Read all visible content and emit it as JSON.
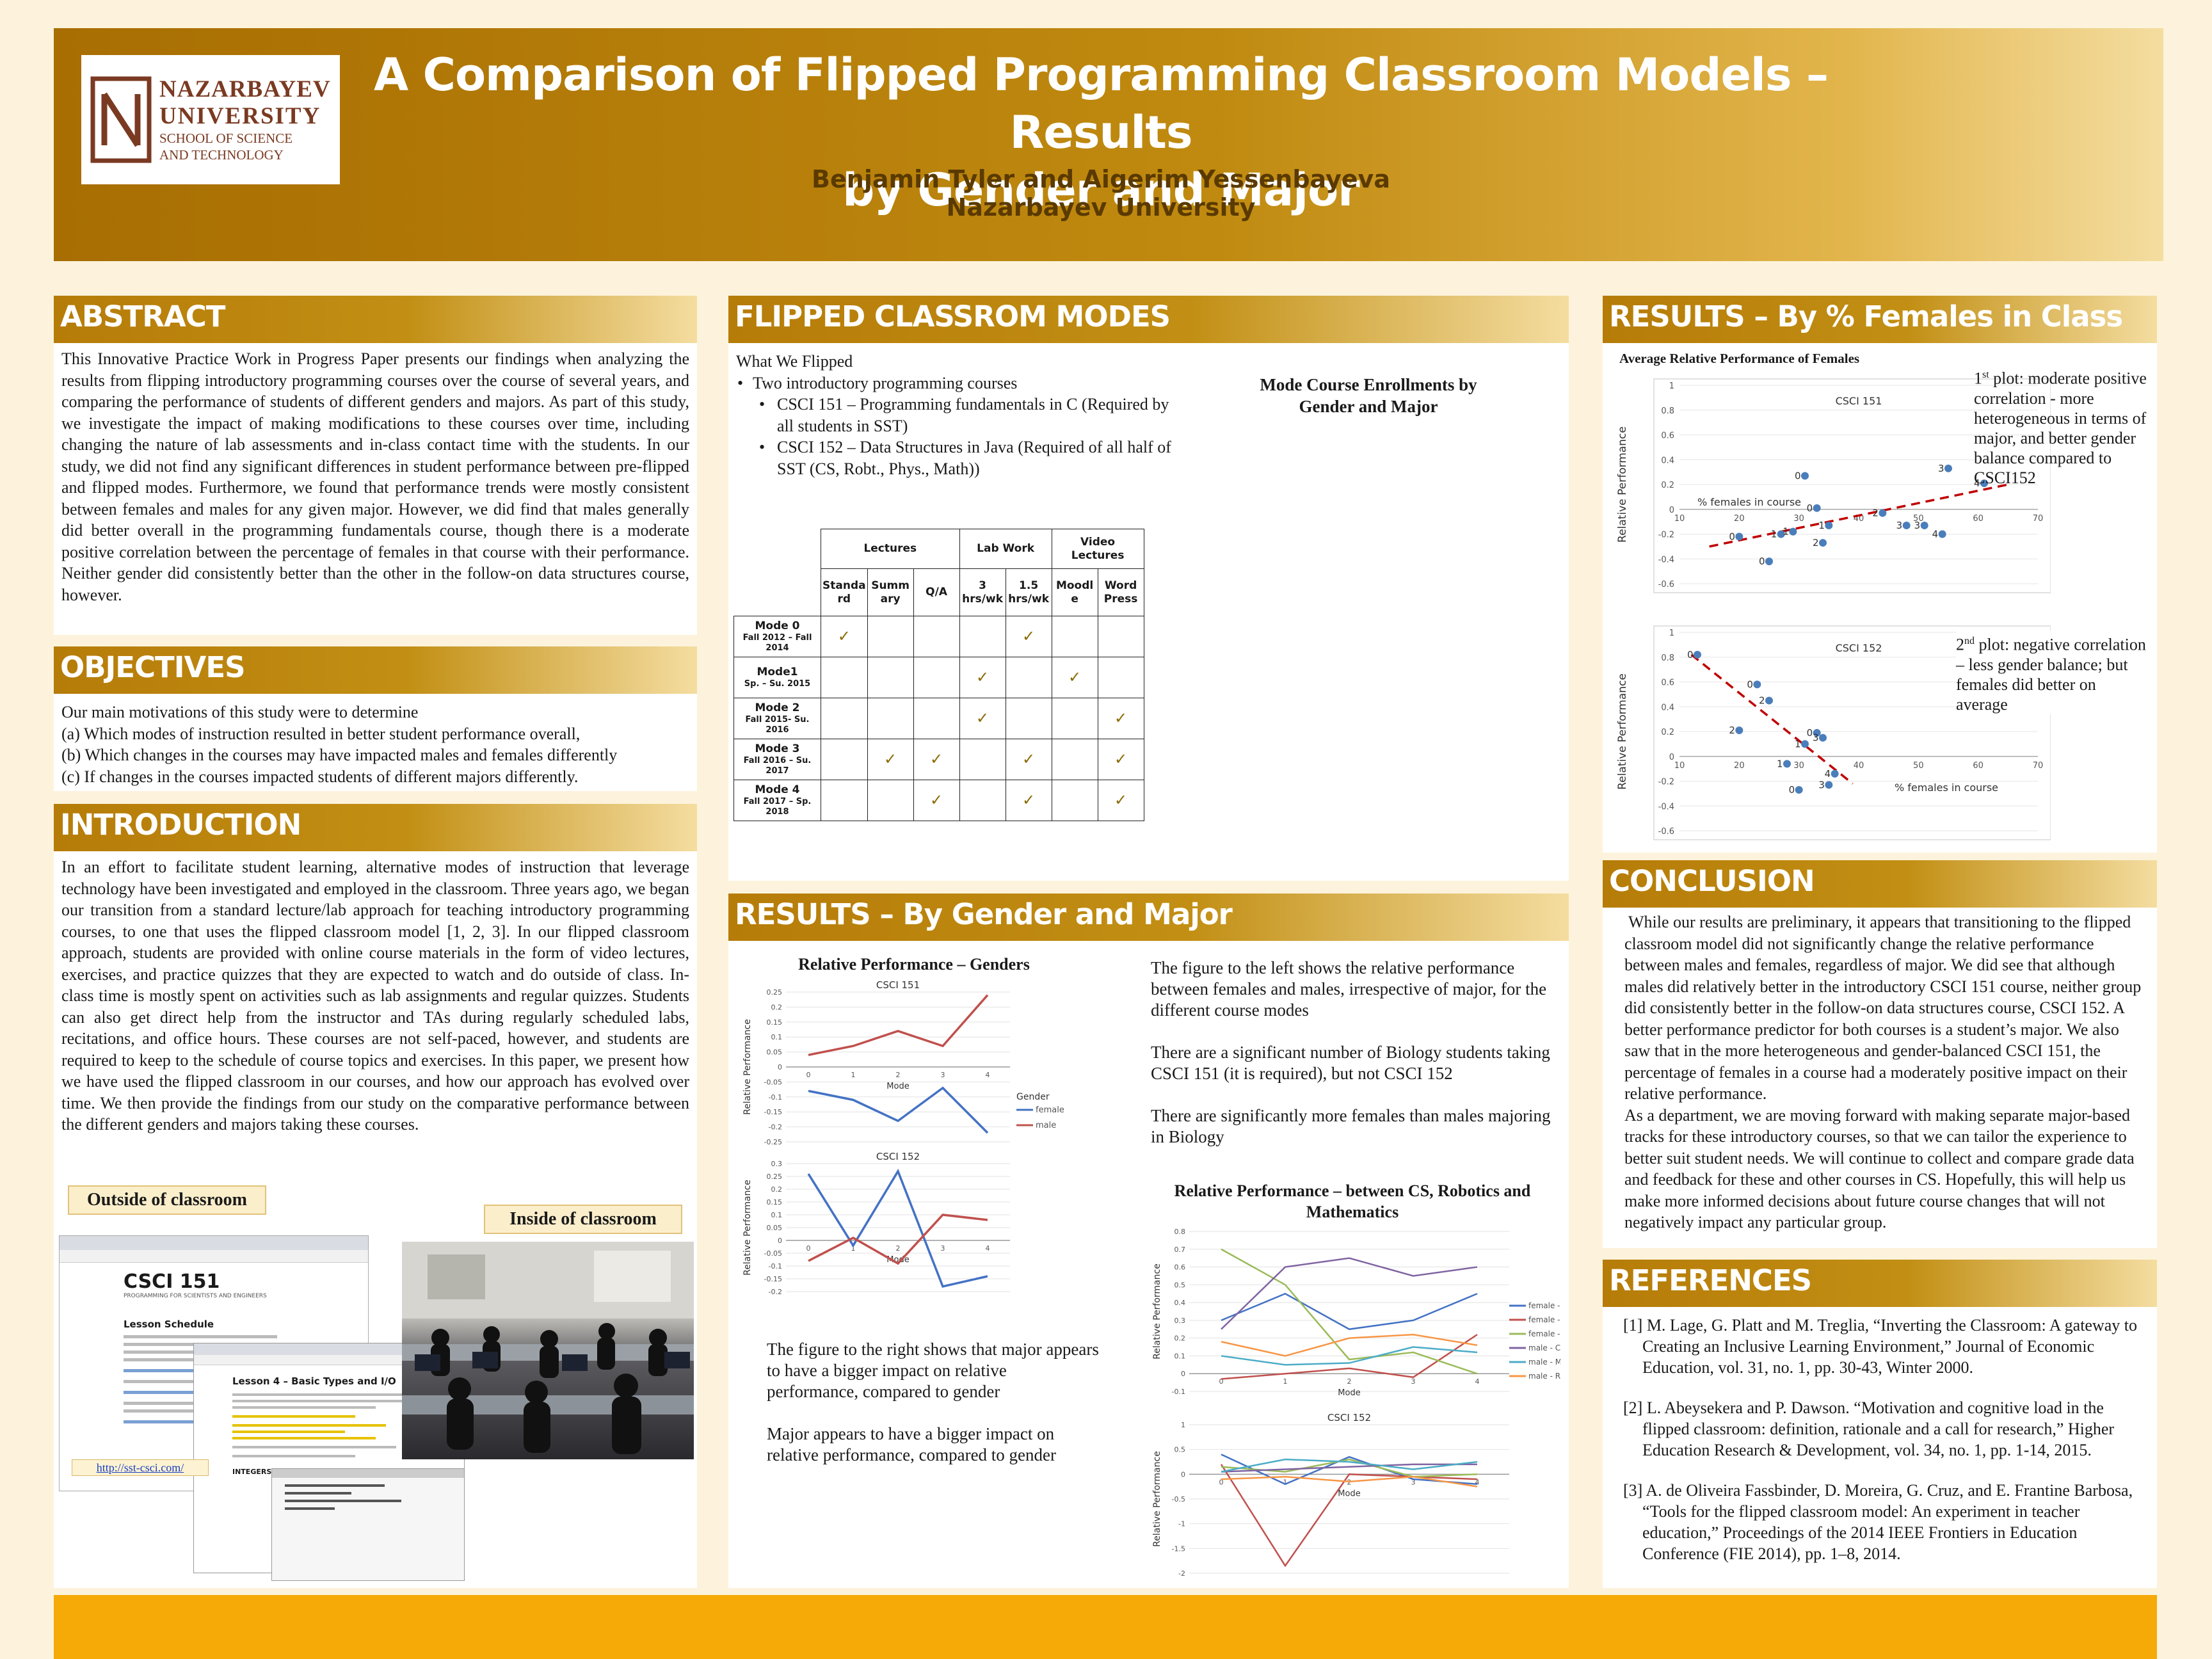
{
  "header": {
    "logo_line1": "NAZARBAYEV",
    "logo_line2": "UNIVERSITY",
    "logo_line3": "SCHOOL OF SCIENCE",
    "logo_line4": "AND TECHNOLOGY",
    "title_line1": "A Comparison of Flipped Programming Classroom Models – Results",
    "title_line2": "by Gender and Major",
    "authors": "Benjamin Tyler and Aigerim Yessenbayeva",
    "affiliation": "Nazarbayev University"
  },
  "abstract": {
    "heading": "ABSTRACT",
    "text": "This Innovative Practice Work in Progress Paper presents our findings when analyzing the results from flipping introductory programming courses over the course of several years, and comparing the performance of students of different genders and majors. As part of this study, we investigate the impact of making modifications to these courses over time, including changing the nature of lab assessments and in-class contact time with the students. In our study, we did not find any significant differences in student performance between pre-flipped and flipped modes. Furthermore, we found that performance trends were mostly consistent between females and males for any given major. However, we did find that males generally did better overall in the programming fundamentals course, though there is a moderate positive correlation between the percentage of females in that course with their performance. Neither gender did consistently better than the other in the follow-on data structures course, however."
  },
  "objectives": {
    "heading": "OBJECTIVES",
    "intro": "Our main motivations of this study were to determine",
    "items": [
      "(a) Which modes of instruction resulted in better student performance overall,",
      "(b) Which changes in the courses may have impacted males and females differently",
      "(c) If changes in the courses impacted students of different majors differently."
    ]
  },
  "introduction": {
    "heading": "INTRODUCTION",
    "text": "In an effort to facilitate student learning, alternative modes of instruction that leverage technology have been investigated and employed in the classroom. Three years ago, we began our transition from a standard lecture/lab approach for teaching introductory programming courses, to one that uses the flipped classroom model [1, 2, 3]. In our flipped classroom approach, students are provided with online course materials in the form of video lectures, exercises, and practice quizzes that they are expected to watch and do outside of class. In-class time is mostly spent on activities such as lab assignments and regular quizzes. Students can also get direct help from the instructor and TAs during regularly scheduled labs, recitations, and office hours. These courses are not self-paced, however, and students are required to keep to the schedule of course topics and exercises. In this paper, we present how we have used the flipped classroom in our courses, and how our approach has evolved over time. We then provide the findings from our study on the comparative performance between the different genders and majors taking these courses.",
    "outside_label": "Outside of classroom",
    "inside_label": "Inside of classroom",
    "link": "http://sst-csci.com/",
    "shot1_title": "CSCI 151",
    "shot1_sub": "PROGRAMMING FOR SCIENTISTS AND ENGINEERS",
    "shot1_section": "Lesson Schedule",
    "shot2_title": "Lesson 4 – Basic Types and I/O",
    "shot3_label": "INTEGERS"
  },
  "modes": {
    "heading": "FLIPPED CLASSROM MODES",
    "what": "What We Flipped",
    "b1": "Two introductory programming courses",
    "b2": "CSCI 151 – Programming fundamentals in C (Required by all students in SST)",
    "b3": "CSCI 152 – Data Structures in Java (Required of all half of SST (CS, Robt., Phys., Math))",
    "enroll_title": "Mode Course Enrollments by Gender and Major",
    "groups": [
      "Lectures",
      "Lab Work",
      "Video Lectures"
    ],
    "cols": [
      "Standa rd",
      "Summ ary",
      "Q/A",
      "3 hrs/wk",
      "1.5 hrs/wk",
      "Moodl e",
      "Word Press"
    ],
    "rows": [
      {
        "name": "Mode 0",
        "sub": "Fall 2012 – Fall 2014",
        "checks": [
          "✓",
          "",
          "",
          "",
          "✓",
          "",
          ""
        ]
      },
      {
        "name": "Mode1",
        "sub": "Sp. – Su. 2015",
        "checks": [
          "",
          "",
          "",
          "✓",
          "",
          "✓",
          ""
        ]
      },
      {
        "name": "Mode 2",
        "sub": "Fall 2015- Su. 2016",
        "checks": [
          "",
          "",
          "",
          "✓",
          "",
          "",
          "✓"
        ]
      },
      {
        "name": "Mode 3",
        "sub": "Fall 2016 – Su. 2017",
        "checks": [
          "",
          "✓",
          "✓",
          "",
          "✓",
          "",
          "✓"
        ]
      },
      {
        "name": "Mode 4",
        "sub": "Fall 2017 – Sp. 2018",
        "checks": [
          "",
          "",
          "✓",
          "",
          "✓",
          "",
          "✓"
        ]
      }
    ]
  },
  "gender_major": {
    "heading": "RESULTS – By Gender and Major",
    "genders_title": "Relative Performance – Genders",
    "text1": "The figure to the left shows the relative performance between females and males, irrespective of major, for the different course modes",
    "text2": "There are a significant number of Biology students taking CSCI 151 (it is required), but not CSCI 152",
    "text3": "There are significantly more females than males majoring in Biology",
    "text4": "The figure to the right shows that major appears to have a bigger impact on relative performance, compared to gender",
    "text5": "Major appears to have a bigger impact on relative performance, compared to gender",
    "majors_title": "Relative Performance – between CS, Robotics and Mathematics"
  },
  "females": {
    "heading": "RESULTS – By % Females in Class",
    "chart_title": "Average Relative Performance of Females",
    "note1_sup": "st",
    "note1": "plot: moderate positive correlation - more heterogeneous in terms of major, and better gender balance compared to CSCI152",
    "note1_num": "1",
    "note2_num": "2",
    "note2_sup": "nd",
    "note2": "plot: negative correlation – less gender balance; but females did better on average"
  },
  "conclusion": {
    "heading": "CONCLUSION",
    "p1": "While our results are preliminary, it appears that transitioning to the flipped classroom model did not significantly change the relative performance between males and females, regardless of major. We did see that although males did relatively better in the introductory CSCI 151 course, neither group did consistently better in the follow-on data structures course, CSCI 152. A better performance predictor for both courses is a student’s major. We also saw that in the more heterogeneous and gender-balanced CSCI 151, the percentage of females in a course had a moderately positive impact on their relative performance.",
    "p2": "As a department, we are moving forward with making separate major-based tracks for these introductory courses, so that we can tailor the experience to better suit student needs. We will continue to collect and compare grade data and feedback for these and other courses in CS. Hopefully, this will help us make more informed decisions about future course changes that will not negatively impact any particular group."
  },
  "references": {
    "heading": "REFERENCES",
    "items": [
      "[1]  M. Lage, G. Platt and M. Treglia, “Inverting the Classroom: A gateway to Creating an Inclusive Learning Environment,” Journal of Economic Education, vol. 31, no. 1, pp. 30-43, Winter 2000.",
      "[2]  L. Abeysekera and P. Dawson. “Motivation and cognitive load in the flipped classroom: definition, rationale and a call for research,” Higher Education Research & Development, vol. 34, no. 1, pp. 1-14, 2015.",
      "[3]  A. de Oliveira Fassbinder, D. Moreira, G. Cruz, and E. Frantine Barbosa, “Tools for the flipped classroom model: An experiment in teacher education,” Proceedings of the 2014 IEEE Frontiers in Education Conference (FIE 2014), pp. 1–8, 2014."
    ]
  },
  "chart_data": [
    {
      "type": "line",
      "title": "CSCI 151",
      "xlabel": "Mode",
      "ylabel": "Relative Performance",
      "categories": [
        0,
        1,
        2,
        3,
        4
      ],
      "ylim": [
        -0.25,
        0.25
      ],
      "yticks": [
        "0.25",
        "0.2",
        "0.15",
        "0.1",
        "0.05",
        "0",
        "-0.05",
        "-0.1",
        "-0.15",
        "-0.2",
        "-0.25"
      ],
      "series": [
        {
          "name": "female",
          "color": "#4472c4",
          "values": [
            -0.08,
            -0.11,
            -0.18,
            -0.07,
            -0.22
          ]
        },
        {
          "name": "male",
          "color": "#c0504d",
          "values": [
            0.04,
            0.07,
            0.12,
            0.07,
            0.24
          ]
        }
      ],
      "legend_title": "Gender"
    },
    {
      "type": "line",
      "title": "CSCI 152",
      "xlabel": "Mode",
      "ylabel": "Relative Performance",
      "categories": [
        0,
        1,
        2,
        3,
        4
      ],
      "ylim": [
        -0.2,
        0.3
      ],
      "yticks": [
        "0.3",
        "0.25",
        "0.2",
        "0.15",
        "0.1",
        "0.05",
        "0",
        "-0.05",
        "-0.1",
        "-0.15",
        "-0.2"
      ],
      "series": [
        {
          "name": "female",
          "color": "#4472c4",
          "values": [
            0.26,
            -0.02,
            0.27,
            -0.18,
            -0.14
          ]
        },
        {
          "name": "male",
          "color": "#c0504d",
          "values": [
            -0.08,
            0.01,
            -0.09,
            0.1,
            0.08
          ]
        }
      ]
    },
    {
      "type": "scatter",
      "title": "CSCI 151",
      "xlabel": "% females in course",
      "ylabel": "Relative Performance",
      "xlim": [
        10,
        70
      ],
      "ylim": [
        -0.6,
        1
      ],
      "xticks": [
        "10",
        "20",
        "30",
        "40",
        "50",
        "60",
        "70"
      ],
      "yticks": [
        "1",
        "0.8",
        "0.6",
        "0.4",
        "0.2",
        "0",
        "-0.2",
        "-0.4",
        "-0.6"
      ],
      "points": [
        {
          "x": 20,
          "y": -0.22,
          "label": "0"
        },
        {
          "x": 25,
          "y": -0.42,
          "label": "0"
        },
        {
          "x": 27,
          "y": -0.2,
          "label": "1"
        },
        {
          "x": 29,
          "y": -0.18,
          "label": "1"
        },
        {
          "x": 31,
          "y": 0.27,
          "label": "0"
        },
        {
          "x": 33,
          "y": 0.01,
          "label": "0"
        },
        {
          "x": 34,
          "y": -0.27,
          "label": "2"
        },
        {
          "x": 35,
          "y": -0.13,
          "label": "1"
        },
        {
          "x": 44,
          "y": -0.03,
          "label": "2"
        },
        {
          "x": 48,
          "y": -0.13,
          "label": "3"
        },
        {
          "x": 51,
          "y": -0.13,
          "label": "3"
        },
        {
          "x": 54,
          "y": -0.2,
          "label": "4"
        },
        {
          "x": 55,
          "y": 0.33,
          "label": "3"
        },
        {
          "x": 61,
          "y": 0.21,
          "label": "4"
        }
      ],
      "trend": [
        [
          15,
          -0.3
        ],
        [
          65,
          0.2
        ]
      ]
    },
    {
      "type": "scatter",
      "title": "CSCI 152",
      "xlabel": "% females in course",
      "ylabel": "Relative Performance",
      "xlim": [
        10,
        70
      ],
      "ylim": [
        -0.6,
        1
      ],
      "xticks": [
        "10",
        "20",
        "30",
        "40",
        "50",
        "60",
        "70"
      ],
      "yticks": [
        "1",
        "0.8",
        "0.6",
        "0.4",
        "0.2",
        "0",
        "-0.2",
        "-0.4",
        "-0.6"
      ],
      "points": [
        {
          "x": 13,
          "y": 0.82,
          "label": "0"
        },
        {
          "x": 20,
          "y": 0.21,
          "label": "2"
        },
        {
          "x": 23,
          "y": 0.58,
          "label": "0"
        },
        {
          "x": 25,
          "y": 0.45,
          "label": "2"
        },
        {
          "x": 28,
          "y": -0.06,
          "label": "1"
        },
        {
          "x": 30,
          "y": -0.27,
          "label": "0"
        },
        {
          "x": 31,
          "y": 0.1,
          "label": "1"
        },
        {
          "x": 33,
          "y": 0.19,
          "label": "0"
        },
        {
          "x": 34,
          "y": 0.15,
          "label": "3"
        },
        {
          "x": 35,
          "y": -0.23,
          "label": "3"
        },
        {
          "x": 36,
          "y": -0.14,
          "label": "4"
        }
      ],
      "trend": [
        [
          12,
          0.82
        ],
        [
          39,
          -0.22
        ]
      ]
    },
    {
      "type": "line",
      "title": "",
      "xlabel": "Mode",
      "ylabel": "Relative Performance",
      "categories": [
        0,
        1,
        2,
        3,
        4
      ],
      "ylim": [
        -0.1,
        0.8
      ],
      "yticks": [
        "0.8",
        "0.7",
        "0.6",
        "0.5",
        "0.4",
        "0.3",
        "0.2",
        "0.1",
        "0",
        "-0.1"
      ],
      "series": [
        {
          "name": "female - CS",
          "color": "#4472c4",
          "values": [
            0.3,
            0.45,
            0.25,
            0.3,
            0.45
          ]
        },
        {
          "name": "female - Mathematics",
          "color": "#c0504d",
          "values": [
            -0.03,
            0.0,
            0.03,
            -0.02,
            0.22
          ]
        },
        {
          "name": "female - Robotics",
          "color": "#9bbb59",
          "values": [
            0.7,
            0.5,
            0.08,
            0.12,
            0.0
          ]
        },
        {
          "name": "male - CS",
          "color": "#8064a2",
          "values": [
            0.25,
            0.6,
            0.65,
            0.55,
            0.6
          ]
        },
        {
          "name": "male - Mathematics",
          "color": "#4bacc6",
          "values": [
            0.1,
            0.05,
            0.06,
            0.15,
            0.12
          ]
        },
        {
          "name": "male - Robotics",
          "color": "#f79646",
          "values": [
            0.18,
            0.1,
            0.2,
            0.22,
            0.16
          ]
        }
      ]
    },
    {
      "type": "line",
      "title": "CSCI 152",
      "xlabel": "Mode",
      "ylabel": "Relative Performance",
      "categories": [
        0,
        1,
        2,
        3,
        4
      ],
      "ylim": [
        -2,
        1
      ],
      "yticks": [
        "1",
        "0.5",
        "0",
        "-0.5",
        "-1",
        "-1.5",
        "-2"
      ],
      "series": [
        {
          "name": "female - CS",
          "color": "#4472c4",
          "values": [
            0.4,
            -0.2,
            0.35,
            -0.1,
            -0.2
          ]
        },
        {
          "name": "female - Mathematics",
          "color": "#c0504d",
          "values": [
            0.2,
            -1.85,
            0.0,
            -0.05,
            -0.1
          ]
        },
        {
          "name": "female - Robotics",
          "color": "#9bbb59",
          "values": [
            0.15,
            0.05,
            0.3,
            -0.05,
            0.0
          ]
        },
        {
          "name": "male - CS",
          "color": "#8064a2",
          "values": [
            0.05,
            0.1,
            0.15,
            0.2,
            0.2
          ]
        },
        {
          "name": "male - Mathematics",
          "color": "#4bacc6",
          "values": [
            0.05,
            0.3,
            0.25,
            0.1,
            0.25
          ]
        },
        {
          "name": "male - Robotics",
          "color": "#f79646",
          "values": [
            -0.1,
            -0.05,
            -0.15,
            -0.05,
            -0.25
          ]
        }
      ]
    }
  ]
}
